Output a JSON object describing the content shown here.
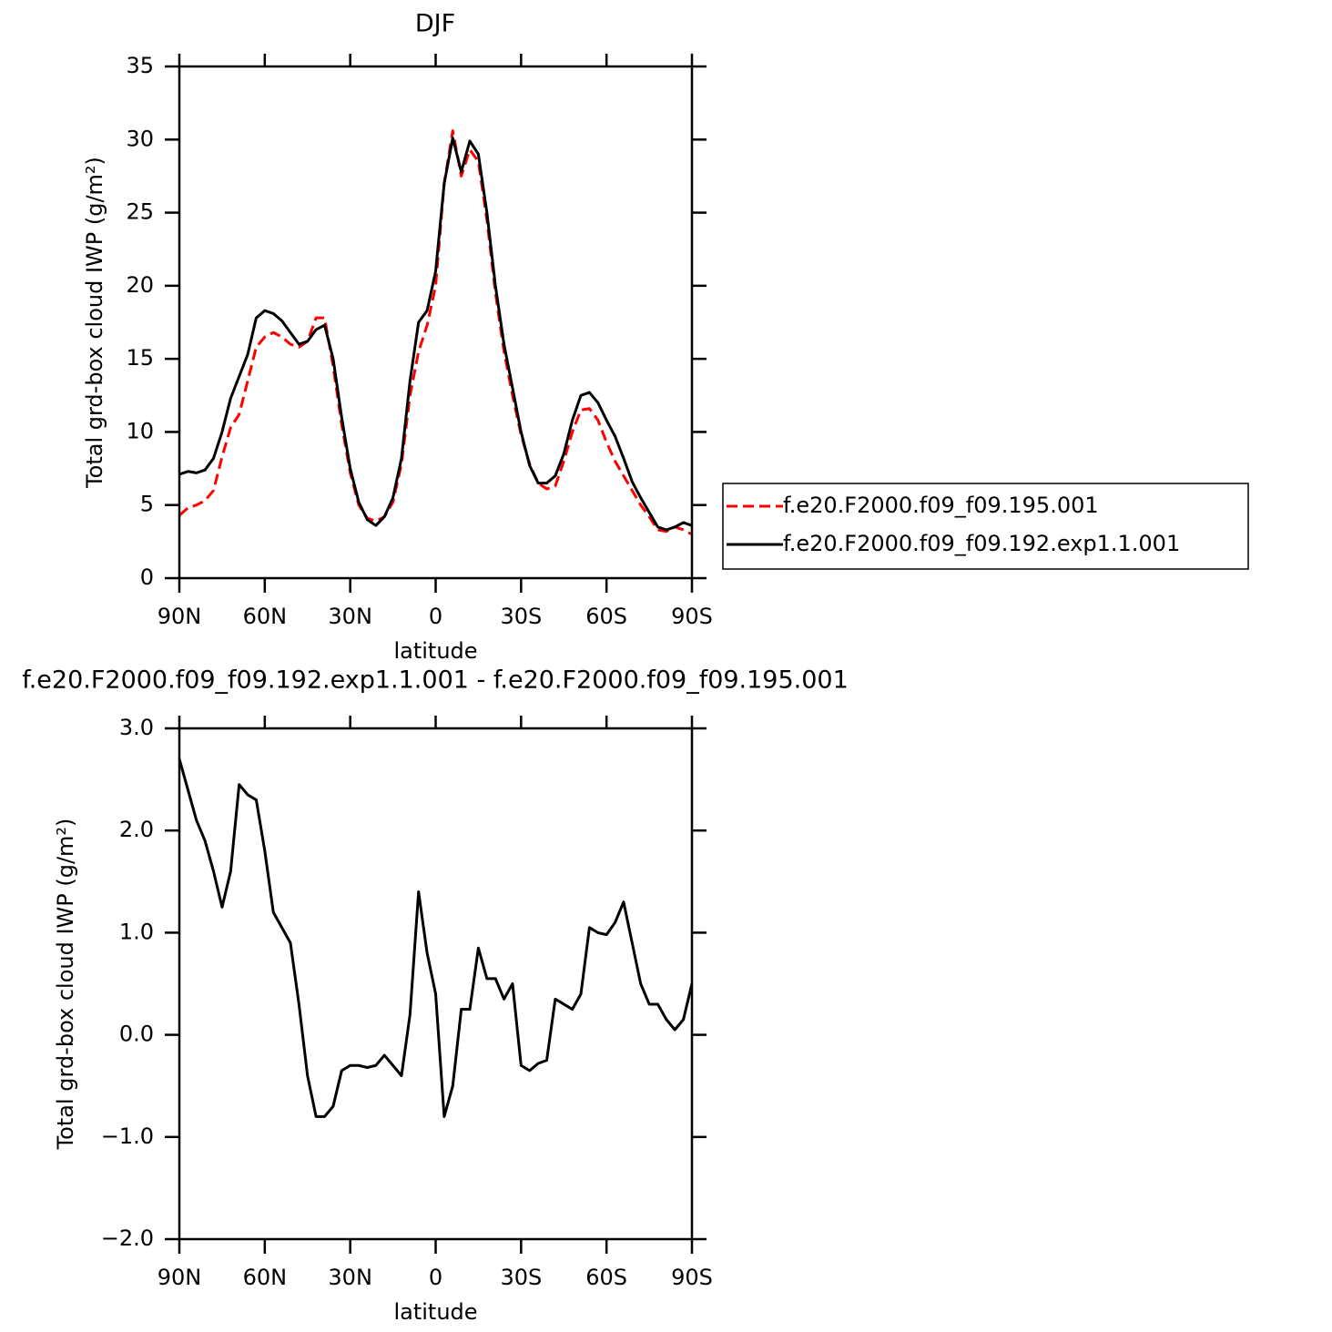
{
  "chart_data": [
    {
      "type": "line",
      "title": "DJF",
      "xlabel": "latitude",
      "ylabel": "Total grd-box cloud IWP (g/m²)",
      "x": [
        90,
        87,
        84,
        81,
        78,
        75,
        72,
        69,
        66,
        63,
        60,
        57,
        54,
        51,
        48,
        45,
        42,
        39,
        36,
        33,
        30,
        27,
        24,
        21,
        18,
        15,
        12,
        9,
        6,
        3,
        0,
        -3,
        -6,
        -9,
        -12,
        -15,
        -18,
        -21,
        -24,
        -27,
        -30,
        -33,
        -36,
        -39,
        -42,
        -45,
        -48,
        -51,
        -54,
        -57,
        -60,
        -63,
        -66,
        -69,
        -72,
        -75,
        -78,
        -81,
        -84,
        -87,
        -90
      ],
      "xlim": [
        90,
        -90
      ],
      "xticks": [
        {
          "value": 90,
          "label": "90N"
        },
        {
          "value": 60,
          "label": "60N"
        },
        {
          "value": 30,
          "label": "30N"
        },
        0,
        {
          "value": -30,
          "label": "30S"
        },
        {
          "value": -60,
          "label": "60S"
        },
        {
          "value": -90,
          "label": "90S"
        }
      ],
      "ylim": [
        0,
        35
      ],
      "yticks": [
        0,
        5,
        10,
        15,
        20,
        25,
        30,
        35
      ],
      "legend": "right",
      "series": [
        {
          "name": "f.e20.F2000.f09_f09.195.001",
          "color": "#ff0000",
          "line_style": "dashed",
          "values": [
            4.3,
            4.8,
            5.0,
            5.3,
            6.0,
            8.3,
            10.3,
            11.2,
            13.5,
            15.8,
            16.5,
            16.8,
            16.5,
            16.0,
            15.8,
            16.2,
            17.8,
            17.8,
            14.5,
            10.5,
            7.2,
            5.0,
            4.1,
            3.9,
            4.2,
            5.2,
            7.8,
            12.5,
            15.5,
            17.3,
            20,
            27,
            30.6,
            27.5,
            29.3,
            28.5,
            24.5,
            19.5,
            15.5,
            12.5,
            9.8,
            7.8,
            6.5,
            6.1,
            6.3,
            8,
            10,
            11.5,
            11.6,
            10.8,
            9.3,
            8,
            7,
            6,
            5,
            4.2,
            3.3,
            3.2,
            3.5,
            3.3,
            3.0
          ]
        },
        {
          "name": "f.e20.F2000.f09_f09.192.exp1.1.001",
          "color": "#000000",
          "line_style": "solid",
          "values": [
            7.1,
            7.3,
            7.2,
            7.4,
            8.2,
            10,
            12.3,
            13.8,
            15.3,
            17.8,
            18.3,
            18.1,
            17.6,
            16.8,
            16.0,
            16.2,
            17.0,
            17.3,
            15,
            11,
            7.5,
            5.2,
            4.0,
            3.6,
            4.2,
            5.5,
            8.2,
            13.5,
            17.5,
            18.3,
            21,
            27,
            30.1,
            27.8,
            29.9,
            29,
            25,
            20,
            16,
            13,
            10,
            7.7,
            6.5,
            6.5,
            7,
            8.5,
            10.8,
            12.5,
            12.7,
            12,
            10.8,
            9.7,
            8.2,
            6.6,
            5.5,
            4.5,
            3.5,
            3.3,
            3.5,
            3.8,
            3.6
          ]
        }
      ]
    },
    {
      "type": "line",
      "title": "f.e20.F2000.f09_f09.192.exp1.1.001 - f.e20.F2000.f09_f09.195.001",
      "xlabel": "latitude",
      "ylabel": "Total grd-box cloud IWP (g/m²)",
      "x": [
        90,
        87,
        84,
        81,
        78,
        75,
        72,
        69,
        66,
        63,
        60,
        57,
        54,
        51,
        48,
        45,
        42,
        39,
        36,
        33,
        30,
        27,
        24,
        21,
        18,
        15,
        12,
        9,
        6,
        3,
        0,
        -3,
        -6,
        -9,
        -12,
        -15,
        -18,
        -21,
        -24,
        -27,
        -30,
        -33,
        -36,
        -39,
        -42,
        -45,
        -48,
        -51,
        -54,
        -57,
        -60,
        -63,
        -66,
        -69,
        -72,
        -75,
        -78,
        -81,
        -84,
        -87,
        -90
      ],
      "xlim": [
        90,
        -90
      ],
      "xticks": [
        {
          "value": 90,
          "label": "90N"
        },
        {
          "value": 60,
          "label": "60N"
        },
        {
          "value": 30,
          "label": "30N"
        },
        0,
        {
          "value": -30,
          "label": "30S"
        },
        {
          "value": -60,
          "label": "60S"
        },
        {
          "value": -90,
          "label": "90S"
        }
      ],
      "ylim": [
        -2,
        3
      ],
      "yticks": [
        {
          "value": -2,
          "label": "−2.0"
        },
        {
          "value": -1,
          "label": "−1.0"
        },
        {
          "value": 0,
          "label": "0.0"
        },
        {
          "value": 1,
          "label": "1.0"
        },
        {
          "value": 2,
          "label": "2.0"
        },
        {
          "value": 3,
          "label": "3.0"
        }
      ],
      "color": "#000000",
      "values": [
        2.7,
        2.4,
        2.1,
        1.9,
        1.6,
        1.25,
        1.6,
        2.45,
        2.35,
        2.3,
        1.8,
        1.2,
        1.05,
        0.9,
        0.3,
        -0.4,
        -0.8,
        -0.8,
        -0.7,
        -0.35,
        -0.3,
        -0.3,
        -0.32,
        -0.3,
        -0.2,
        -0.3,
        -0.4,
        0.2,
        1.4,
        0.8,
        0.4,
        -0.8,
        -0.5,
        0.25,
        0.25,
        0.85,
        0.55,
        0.55,
        0.35,
        0.5,
        -0.3,
        -0.35,
        -0.28,
        -0.25,
        0.35,
        0.3,
        0.25,
        0.4,
        1.05,
        1.0,
        0.98,
        1.1,
        1.3,
        0.9,
        0.5,
        0.3,
        0.3,
        0.15,
        0.05,
        0.15,
        0.5
      ]
    }
  ]
}
